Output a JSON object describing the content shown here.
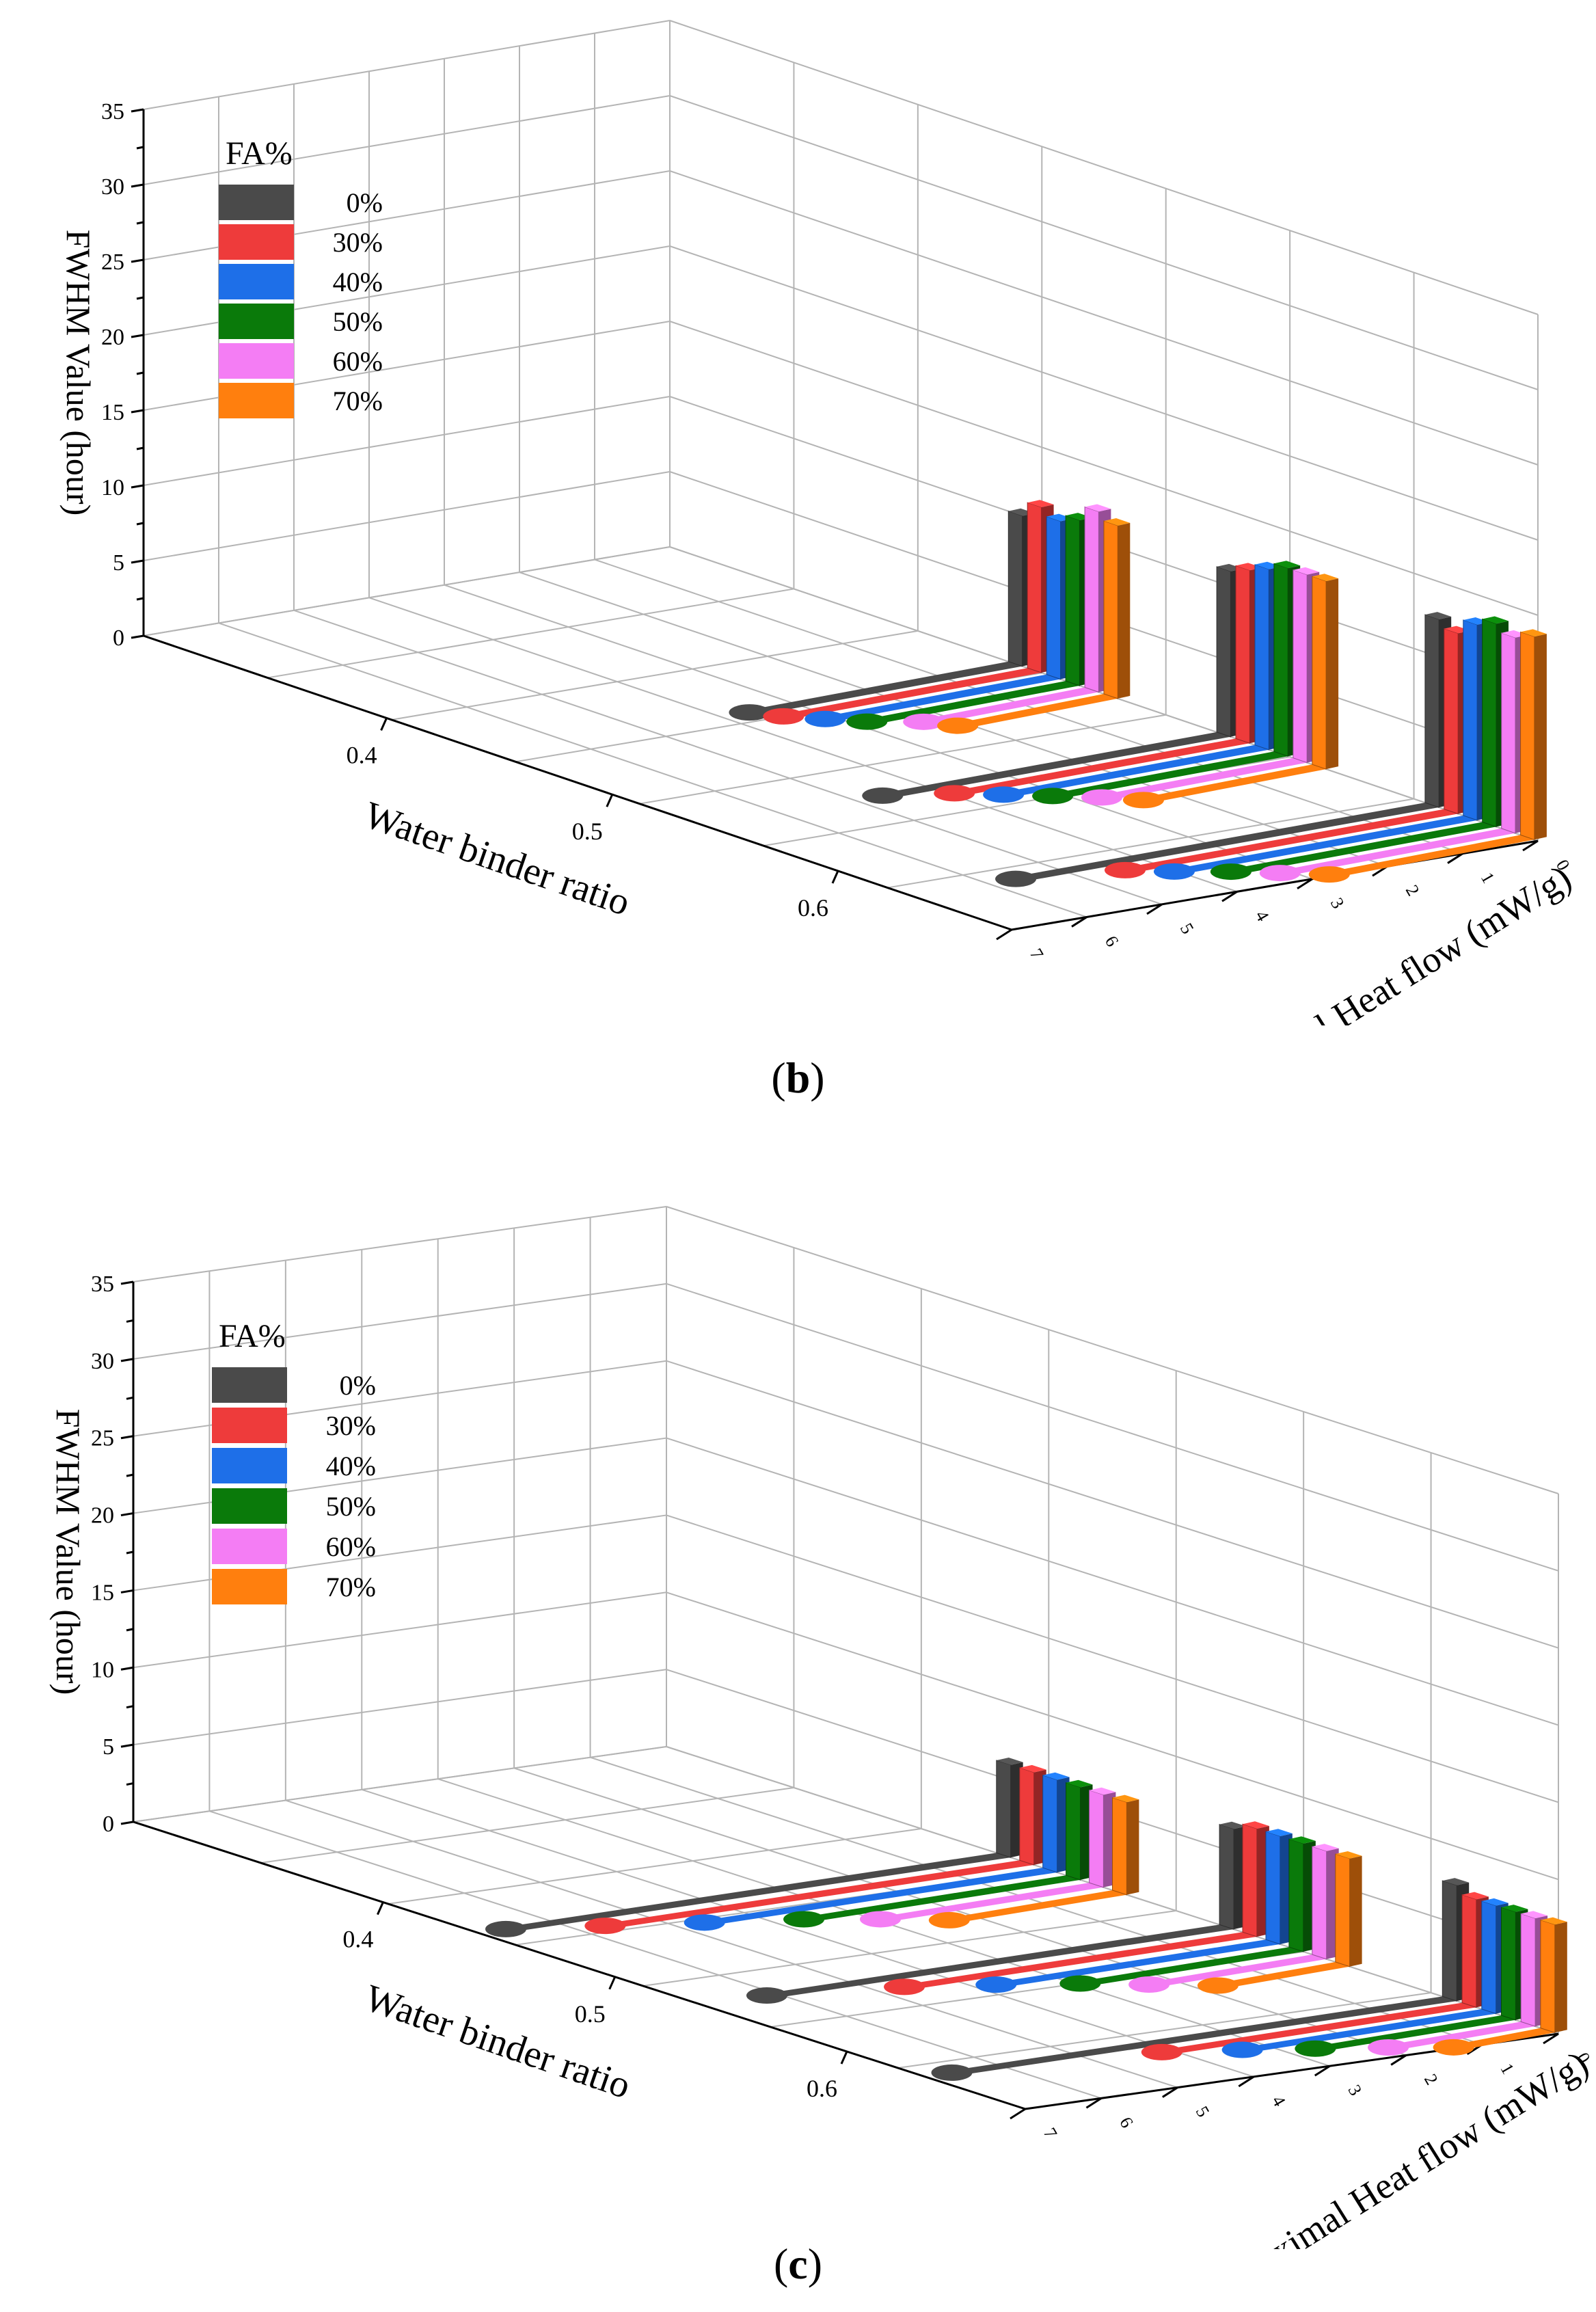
{
  "chart_data": [
    {
      "type": "bar",
      "panel_label": "b",
      "zlabel": "FWHM Value (hour)",
      "xlabel": "Water binder ratio",
      "ylabel": "Maximal Heat flow (mW/g)",
      "zlim": [
        0,
        35
      ],
      "z_ticks": [
        "0",
        "5",
        "10",
        "15",
        "20",
        "25",
        "30",
        "35"
      ],
      "x_ticks": [
        "0.4",
        "0.5",
        "0.6"
      ],
      "y_ticks": [
        "0",
        "1",
        "2",
        "3",
        "4",
        "5",
        "6",
        "7"
      ],
      "ylim": [
        0,
        7
      ],
      "legend_title": "FA%",
      "categories": [
        "0.4",
        "0.5",
        "0.6"
      ],
      "series": [
        {
          "name": "0%",
          "color": "#4a4a4a",
          "fwhm": [
            10,
            11,
            12.5
          ],
          "max_heat_flow": [
            3.5,
            4.5,
            5.5
          ]
        },
        {
          "name": "30%",
          "color": "#ee3b3b",
          "fwhm": [
            11,
            11.5,
            12
          ],
          "max_heat_flow": [
            3.3,
            3.8,
            4.3
          ]
        },
        {
          "name": "40%",
          "color": "#1e6fe8",
          "fwhm": [
            10.5,
            12,
            13
          ],
          "max_heat_flow": [
            3.0,
            3.4,
            3.9
          ]
        },
        {
          "name": "50%",
          "color": "#0a7a0a",
          "fwhm": [
            11,
            12.5,
            13.5
          ],
          "max_heat_flow": [
            2.7,
            3.0,
            3.4
          ]
        },
        {
          "name": "60%",
          "color": "#f47df4",
          "fwhm": [
            12,
            12.5,
            13
          ],
          "max_heat_flow": [
            2.2,
            2.6,
            3.0
          ]
        },
        {
          "name": "70%",
          "color": "#ff7f0e",
          "fwhm": [
            11.5,
            12.5,
            13.5
          ],
          "max_heat_flow": [
            2.0,
            2.3,
            2.6
          ]
        }
      ]
    },
    {
      "type": "bar",
      "panel_label": "c",
      "zlabel": "FWHM Value (hour)",
      "xlabel": "Water binder ratio",
      "ylabel": "Maximal Heat flow (mW/g)",
      "zlim": [
        0,
        35
      ],
      "z_ticks": [
        "0",
        "5",
        "10",
        "15",
        "20",
        "25",
        "30",
        "35"
      ],
      "x_ticks": [
        "0.4",
        "0.5",
        "0.6"
      ],
      "y_ticks": [
        "0",
        "1",
        "2",
        "3",
        "4",
        "5",
        "6",
        "7"
      ],
      "ylim": [
        0,
        7
      ],
      "legend_title": "FA%",
      "categories": [
        "0.4",
        "0.5",
        "0.6"
      ],
      "series": [
        {
          "name": "0%",
          "color": "#4a4a4a",
          "fwhm": [
            6,
            6.5,
            7.5
          ],
          "max_heat_flow": [
            6.5,
            6.0,
            6.5
          ]
        },
        {
          "name": "30%",
          "color": "#ee3b3b",
          "fwhm": [
            6,
            7,
            7
          ],
          "max_heat_flow": [
            5.5,
            4.5,
            4.0
          ]
        },
        {
          "name": "40%",
          "color": "#1e6fe8",
          "fwhm": [
            6,
            7,
            7
          ],
          "max_heat_flow": [
            4.5,
            3.6,
            3.2
          ]
        },
        {
          "name": "50%",
          "color": "#0a7a0a",
          "fwhm": [
            6,
            7,
            7
          ],
          "max_heat_flow": [
            3.5,
            2.8,
            2.5
          ]
        },
        {
          "name": "60%",
          "color": "#f47df4",
          "fwhm": [
            6,
            7,
            7
          ],
          "max_heat_flow": [
            2.8,
            2.2,
            1.8
          ]
        },
        {
          "name": "70%",
          "color": "#ff7f0e",
          "fwhm": [
            6,
            7,
            7
          ],
          "max_heat_flow": [
            2.2,
            1.6,
            1.2
          ]
        }
      ]
    }
  ]
}
